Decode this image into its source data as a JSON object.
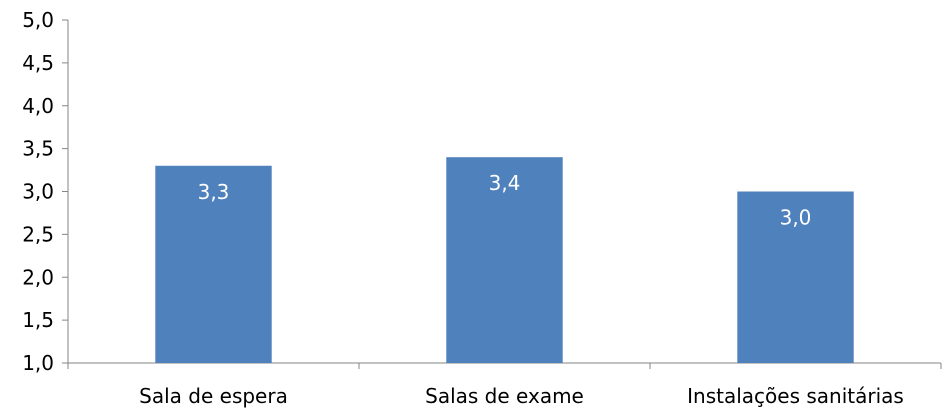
{
  "chart_data": {
    "type": "bar",
    "categories": [
      "Sala de espera",
      "Salas de exame",
      "Instalações sanitárias"
    ],
    "values": [
      3.3,
      3.4,
      3.0
    ],
    "data_labels": [
      "3,3",
      "3,4",
      "3,0"
    ],
    "ylim": [
      1.0,
      5.0
    ],
    "yticks": [
      1.0,
      1.5,
      2.0,
      2.5,
      3.0,
      3.5,
      4.0,
      4.5,
      5.0
    ],
    "ytick_labels": [
      "1,0",
      "1,5",
      "2,0",
      "2,5",
      "3,0",
      "3,5",
      "4,0",
      "4,5",
      "5,0"
    ],
    "grid": false,
    "legend": "none",
    "bar_color": "#4f81bd",
    "title": "",
    "xlabel": "",
    "ylabel": ""
  }
}
